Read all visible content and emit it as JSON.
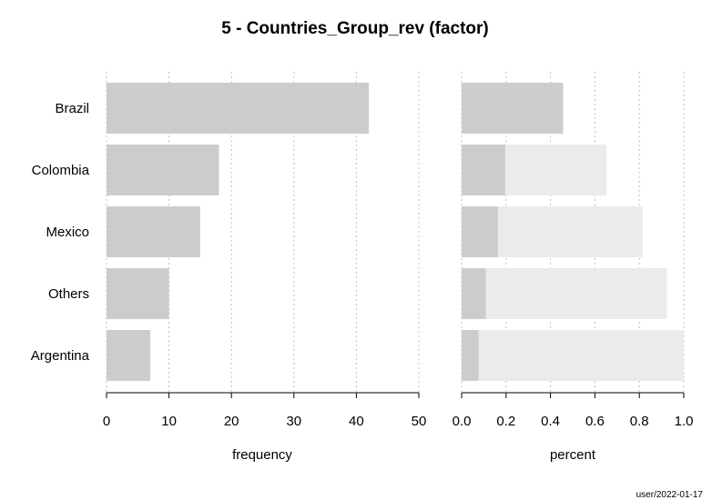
{
  "chart_data": {
    "type": "bar",
    "orientation": "horizontal",
    "title": "5 - Countries_Group_rev (factor)",
    "categories": [
      "Brazil",
      "Colombia",
      "Mexico",
      "Others",
      "Argentina"
    ],
    "frequency": {
      "values": [
        42,
        18,
        15,
        10,
        7
      ],
      "xlabel": "frequency",
      "xlim": [
        0,
        50
      ],
      "ticks": [
        "0",
        "10",
        "20",
        "30",
        "40",
        "50"
      ],
      "grid": "vertical dotted"
    },
    "percent": {
      "values": [
        0.457,
        0.196,
        0.163,
        0.109,
        0.076
      ],
      "cumulative": [
        0.457,
        0.652,
        0.815,
        0.924,
        1.0
      ],
      "xlabel": "percent",
      "xlim": [
        0,
        1
      ],
      "ticks": [
        "0.0",
        "0.2",
        "0.4",
        "0.6",
        "0.8",
        "1.0"
      ],
      "grid": "vertical dotted"
    },
    "colors": {
      "bar": "#cccccc",
      "cumulative_bar": "#ebebeb",
      "grid": "#c0c0c0"
    },
    "footer": "user/2022-01-17"
  }
}
